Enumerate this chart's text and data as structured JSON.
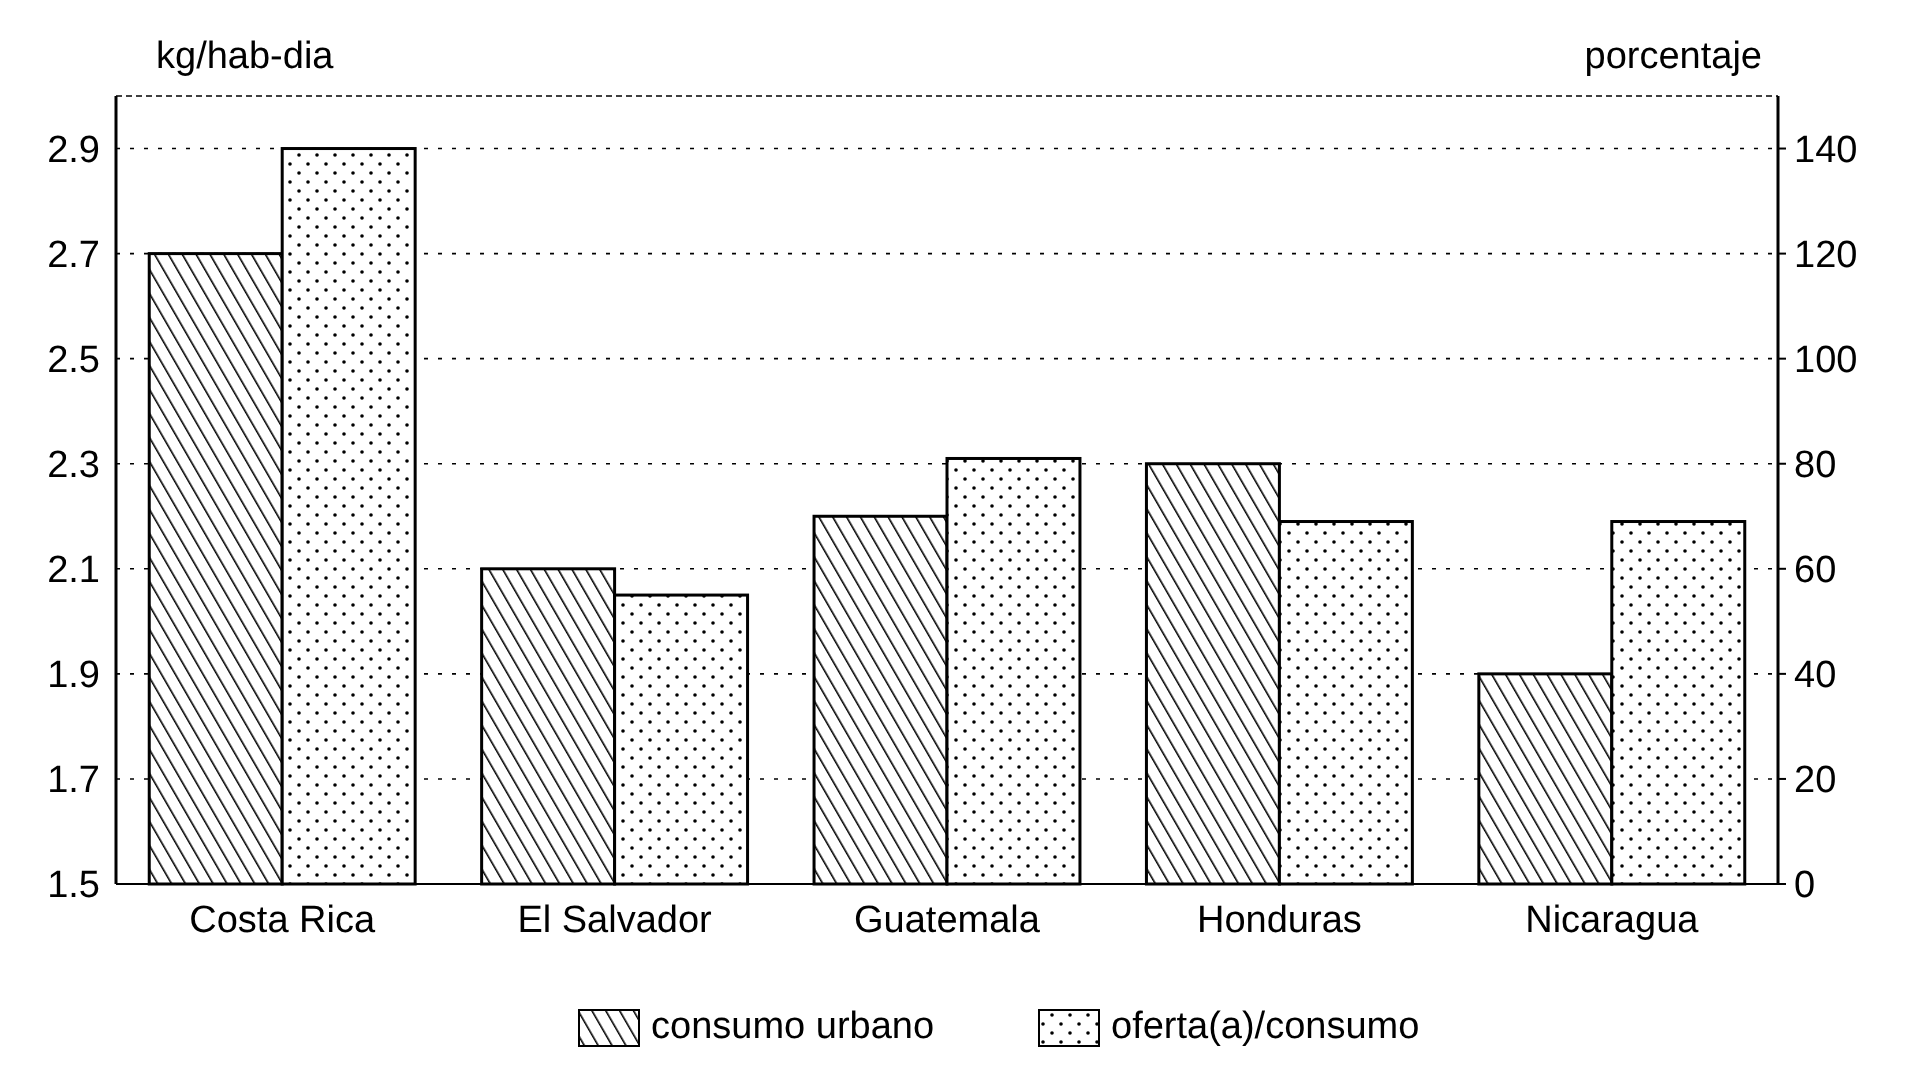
{
  "chart_data": {
    "type": "bar",
    "categories": [
      "Costa Rica",
      "El Salvador",
      "Guatemala",
      "Honduras",
      "Nicaragua"
    ],
    "ylabel": "kg/hab-dia",
    "y2label": "porcentaje",
    "series": [
      {
        "name": "consumo urbano",
        "color": "#000000",
        "values": [
          2.7,
          2.1,
          2.2,
          2.3,
          1.9
        ]
      },
      {
        "name": "oferta(a)/consumo",
        "color": "#000000",
        "axis": "y2",
        "values": [
          140,
          55,
          81,
          69,
          69
        ]
      }
    ],
    "ylim": [
      1.5,
      3.0
    ],
    "yticks": [
      1.5,
      1.7,
      1.9,
      2.1,
      2.3,
      2.5,
      2.7,
      2.9
    ],
    "y2lim": [
      0,
      150
    ],
    "y2ticks": [
      0,
      20,
      40,
      60,
      80,
      100,
      120,
      140
    ],
    "grid": "y",
    "legend": "bottom"
  }
}
